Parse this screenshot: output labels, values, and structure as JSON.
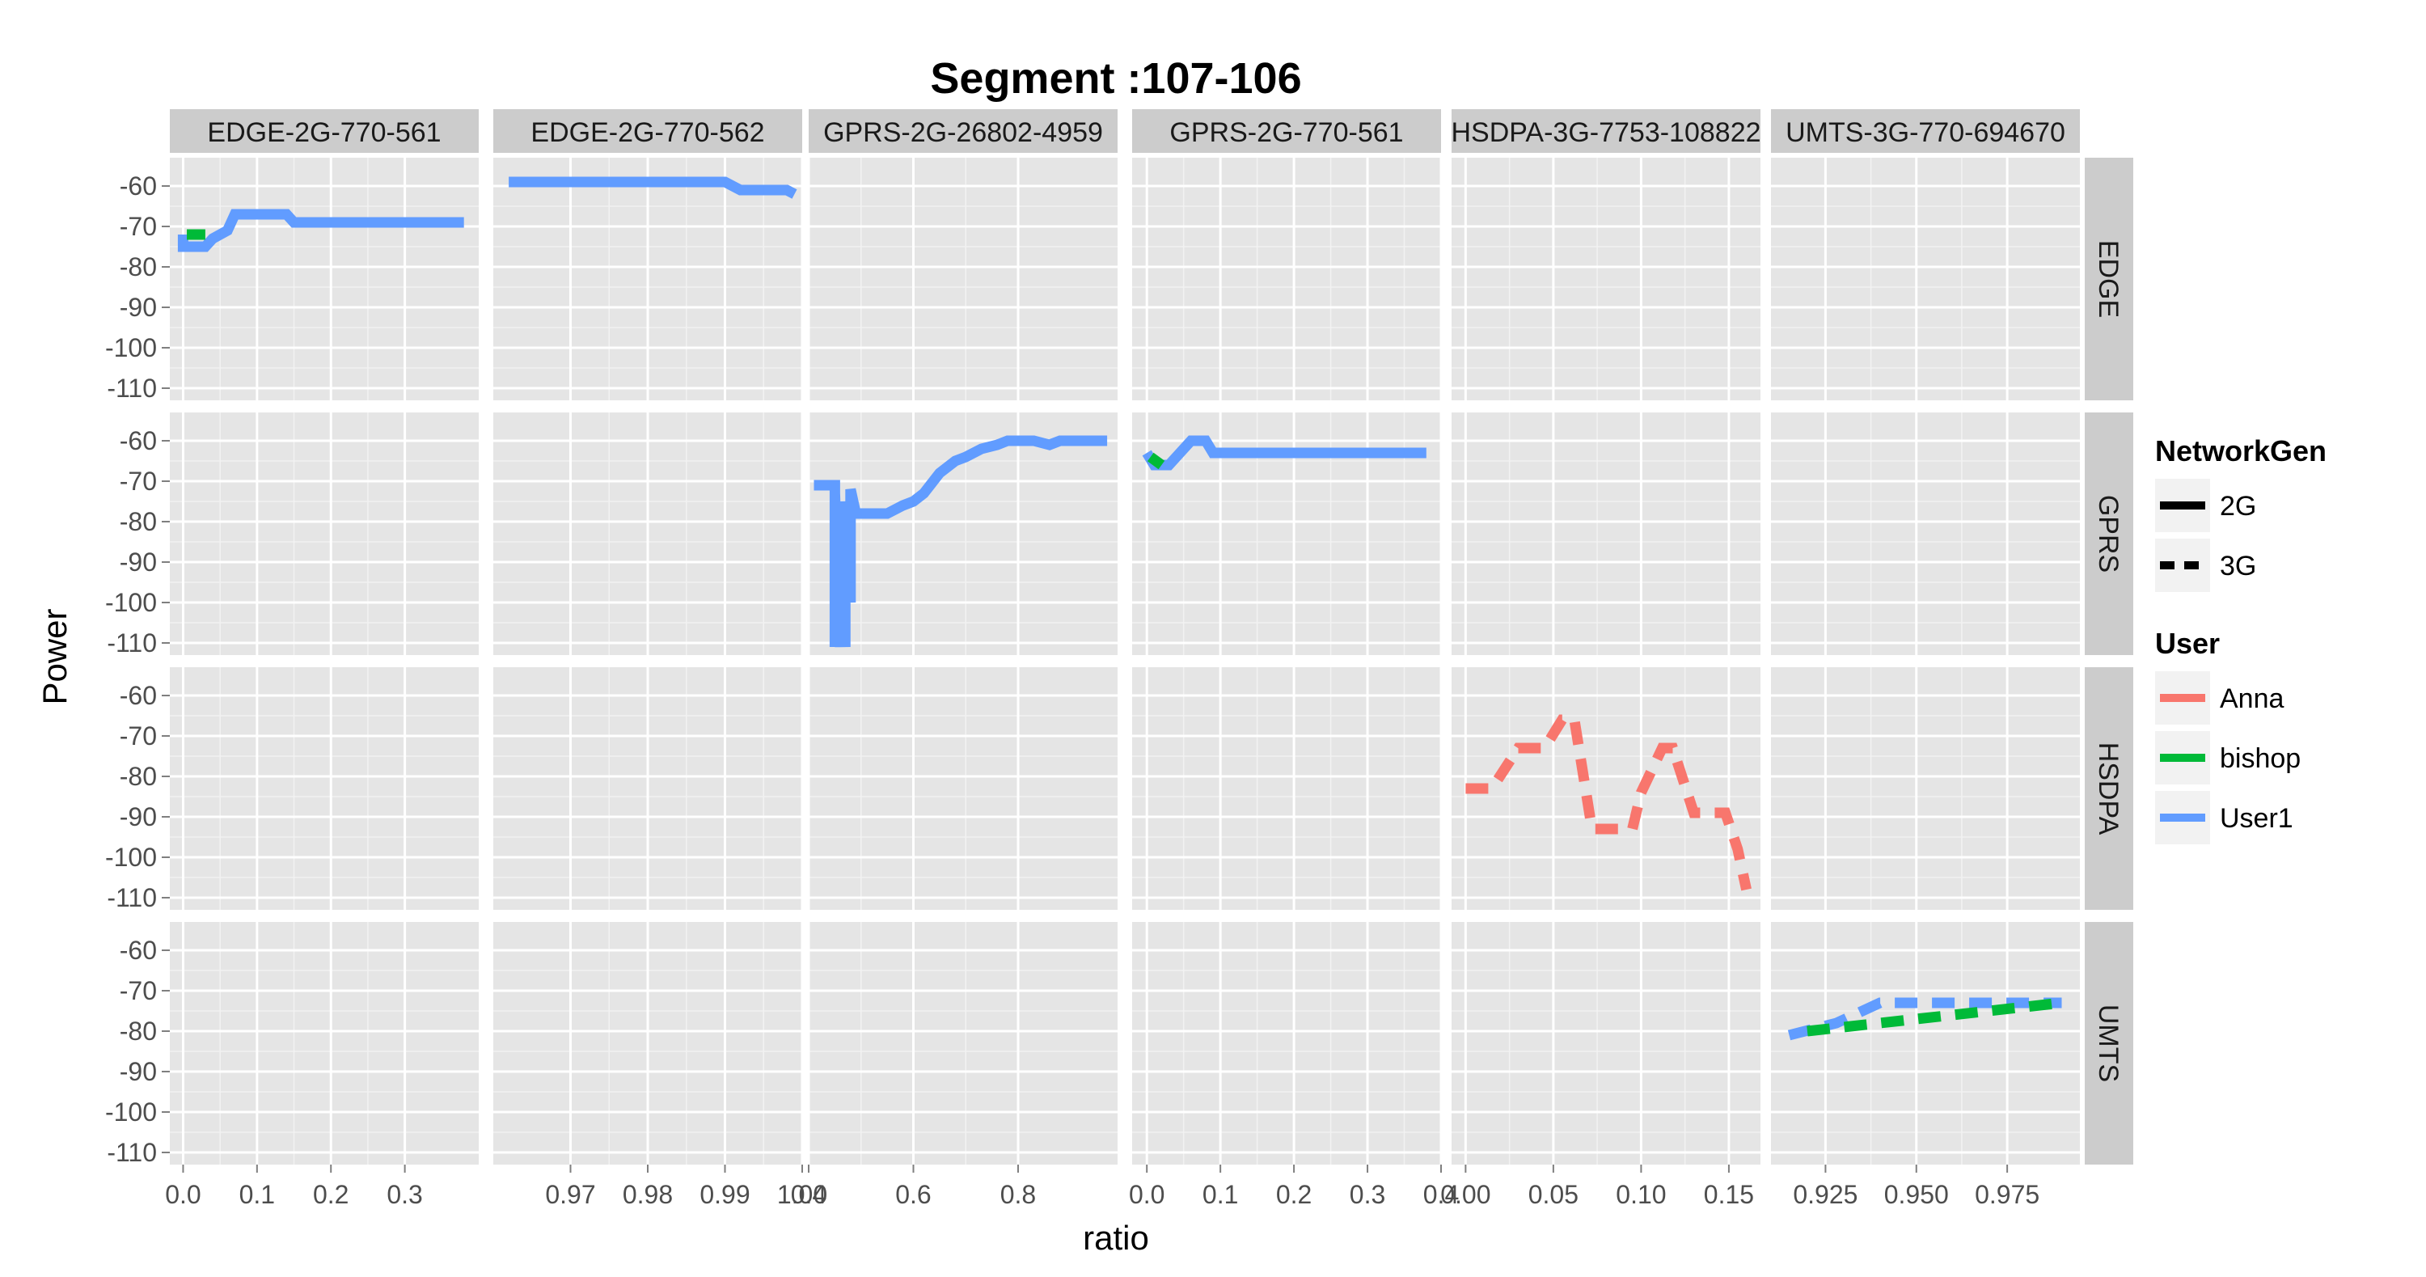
{
  "chart_data": {
    "type": "line",
    "title": "Segment :107-106",
    "xlabel": "ratio",
    "ylabel": "Power",
    "grid": true,
    "legend_position": "right",
    "columns": [
      "EDGE-2G-770-561",
      "EDGE-2G-770-562",
      "GPRS-2G-26802-4959",
      "GPRS-2G-770-561",
      "HSDPA-3G-7753-108822",
      "UMTS-3G-770-694670"
    ],
    "rows": [
      "EDGE",
      "GPRS",
      "HSDPA",
      "UMTS"
    ],
    "y_ticks": [
      -60,
      -70,
      -80,
      -90,
      -100,
      -110
    ],
    "ylim": [
      -113,
      -53
    ],
    "x_axes": [
      {
        "xlim": [
          -0.018,
          0.4
        ],
        "ticks": [
          0.0,
          0.1,
          0.2,
          0.3
        ],
        "tick_labels": [
          "0.0",
          "0.1",
          "0.2",
          "0.3"
        ]
      },
      {
        "xlim": [
          0.96,
          1.0
        ],
        "ticks": [
          0.97,
          0.98,
          0.99,
          1.0
        ],
        "tick_labels": [
          "0.97",
          "0.98",
          "0.99",
          "1.00"
        ]
      },
      {
        "xlim": [
          0.4,
          0.99
        ],
        "ticks": [
          0.4,
          0.6,
          0.8
        ],
        "tick_labels": [
          "0.4",
          "0.6",
          "0.8"
        ]
      },
      {
        "xlim": [
          -0.02,
          0.4
        ],
        "ticks": [
          0.0,
          0.1,
          0.2,
          0.3,
          0.4
        ],
        "tick_labels": [
          "0.0",
          "0.1",
          "0.2",
          "0.3",
          "0.4"
        ]
      },
      {
        "xlim": [
          -0.008,
          0.168
        ],
        "ticks": [
          0.0,
          0.05,
          0.1,
          0.15
        ],
        "tick_labels": [
          "0.00",
          "0.05",
          "0.10",
          "0.15"
        ]
      },
      {
        "xlim": [
          0.91,
          0.995
        ],
        "ticks": [
          0.925,
          0.95,
          0.975
        ],
        "tick_labels": [
          "0.925",
          "0.950",
          "0.975"
        ]
      }
    ],
    "legends": [
      {
        "title": "NetworkGen",
        "items": [
          {
            "label": "2G",
            "dash": "solid"
          },
          {
            "label": "3G",
            "dash": "dashed"
          }
        ]
      },
      {
        "title": "User",
        "items": [
          {
            "label": "Anna",
            "color": "#F8766D"
          },
          {
            "label": "bishop",
            "color": "#00BA38"
          },
          {
            "label": "User1",
            "color": "#619CFF"
          }
        ]
      }
    ],
    "series": [
      {
        "panel": [
          0,
          0
        ],
        "user": "User1",
        "gen": "2G",
        "points": [
          [
            0.0,
            -72
          ],
          [
            0.0,
            -75
          ],
          [
            0.03,
            -75
          ],
          [
            0.04,
            -73
          ],
          [
            0.06,
            -71
          ],
          [
            0.07,
            -67
          ],
          [
            0.14,
            -67
          ],
          [
            0.15,
            -69
          ],
          [
            0.38,
            -69
          ]
        ]
      },
      {
        "panel": [
          0,
          0
        ],
        "user": "bishop",
        "gen": "2G",
        "points": [
          [
            0.005,
            -72
          ],
          [
            0.03,
            -72
          ]
        ]
      },
      {
        "panel": [
          0,
          1
        ],
        "user": "User1",
        "gen": "2G",
        "points": [
          [
            0.962,
            -59
          ],
          [
            0.99,
            -59
          ],
          [
            0.992,
            -61
          ],
          [
            0.998,
            -61
          ],
          [
            0.999,
            -62
          ]
        ]
      },
      {
        "panel": [
          1,
          2
        ],
        "user": "User1",
        "gen": "2G",
        "points": [
          [
            0.41,
            -71
          ],
          [
            0.45,
            -71
          ],
          [
            0.45,
            -111
          ],
          [
            0.45,
            -73
          ],
          [
            0.46,
            -111
          ],
          [
            0.46,
            -75
          ],
          [
            0.47,
            -111
          ],
          [
            0.47,
            -76
          ],
          [
            0.48,
            -100
          ],
          [
            0.48,
            -72
          ],
          [
            0.49,
            -78
          ],
          [
            0.55,
            -78
          ],
          [
            0.58,
            -76
          ],
          [
            0.6,
            -75
          ],
          [
            0.62,
            -73
          ],
          [
            0.65,
            -68
          ],
          [
            0.68,
            -65
          ],
          [
            0.7,
            -64
          ],
          [
            0.73,
            -62
          ],
          [
            0.76,
            -61
          ],
          [
            0.78,
            -60
          ],
          [
            0.83,
            -60
          ],
          [
            0.86,
            -61
          ],
          [
            0.88,
            -60
          ],
          [
            0.97,
            -60
          ]
        ]
      },
      {
        "panel": [
          1,
          3
        ],
        "user": "User1",
        "gen": "2G",
        "points": [
          [
            0.0,
            -63
          ],
          [
            0.01,
            -66
          ],
          [
            0.03,
            -66
          ],
          [
            0.06,
            -60
          ],
          [
            0.08,
            -60
          ],
          [
            0.09,
            -63
          ],
          [
            0.38,
            -63
          ]
        ]
      },
      {
        "panel": [
          1,
          3
        ],
        "user": "bishop",
        "gen": "2G",
        "points": [
          [
            0.005,
            -64
          ],
          [
            0.02,
            -66
          ]
        ]
      },
      {
        "panel": [
          2,
          4
        ],
        "user": "Anna",
        "gen": "3G",
        "points": [
          [
            0.0,
            -83
          ],
          [
            0.015,
            -83
          ],
          [
            0.03,
            -73
          ],
          [
            0.045,
            -73
          ],
          [
            0.055,
            -66
          ],
          [
            0.062,
            -66
          ],
          [
            0.072,
            -93
          ],
          [
            0.085,
            -93
          ],
          [
            0.095,
            -93
          ],
          [
            0.1,
            -84
          ],
          [
            0.112,
            -73
          ],
          [
            0.118,
            -73
          ],
          [
            0.13,
            -89
          ],
          [
            0.14,
            -89
          ],
          [
            0.148,
            -89
          ],
          [
            0.155,
            -98
          ],
          [
            0.16,
            -108
          ]
        ]
      },
      {
        "panel": [
          3,
          5
        ],
        "user": "User1",
        "gen": "3G",
        "points": [
          [
            0.915,
            -81
          ],
          [
            0.928,
            -78
          ],
          [
            0.94,
            -73
          ],
          [
            0.99,
            -73
          ]
        ]
      },
      {
        "panel": [
          3,
          5
        ],
        "user": "bishop",
        "gen": "3G",
        "points": [
          [
            0.92,
            -80
          ],
          [
            0.93,
            -79
          ],
          [
            0.95,
            -77
          ],
          [
            0.97,
            -75
          ],
          [
            0.99,
            -73
          ]
        ]
      }
    ]
  }
}
